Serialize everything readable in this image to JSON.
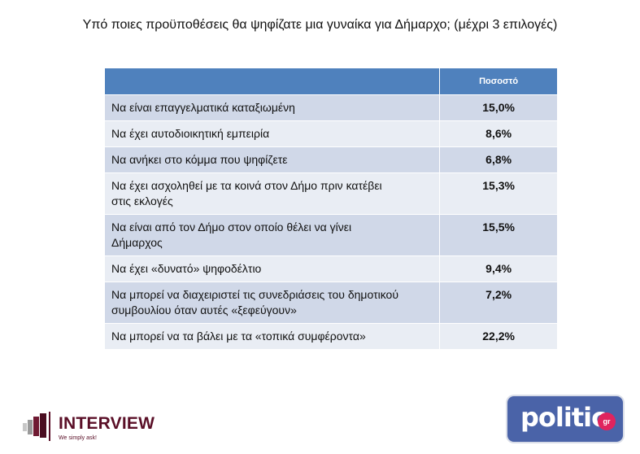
{
  "title": "Υπό ποιες προϋποθέσεις θα ψηφίζατε μια γυναίκα για Δήμαρχο; (μέχρι 3 επιλογές)",
  "table": {
    "header": {
      "label": "",
      "pct": "Ποσοστό"
    },
    "rows": [
      {
        "label": "Να είναι επαγγελματικά καταξιωμένη",
        "pct": "15,0%"
      },
      {
        "label": "Να έχει αυτοδιοικητική εμπειρία",
        "pct": "8,6%"
      },
      {
        "label": "Να ανήκει στο κόμμα που ψηφίζετε",
        "pct": "6,8%"
      },
      {
        "label": "Να έχει ασχοληθεί με τα κοινά στον Δήμο πριν κατέβει στις εκλογές",
        "pct": "15,3%"
      },
      {
        "label": "Να είναι από τον Δήμο στον οποίο θέλει να γίνει Δήμαρχος",
        "pct": "15,5%"
      },
      {
        "label": "Να έχει «δυνατό» ψηφοδέλτιο",
        "pct": "9,4%"
      },
      {
        "label": "Να μπορεί να διαχειριστεί τις συνεδριάσεις του δημοτικού συμβουλίου όταν αυτές «ξεφεύγουν»",
        "pct": "7,2%"
      },
      {
        "label": "Να μπορεί να τα βάλει με τα «τοπικά συμφέροντα»",
        "pct": "22,2%"
      }
    ]
  },
  "logos": {
    "interview": {
      "name": "INTERVIEW",
      "tagline": "We simply ask!"
    },
    "politic": {
      "name": "politic",
      "badge": "gr"
    }
  },
  "colors": {
    "header_bg": "#4f81bd",
    "row_odd": "#d0d8e8",
    "row_even": "#e9edf4",
    "interview_brand": "#5a0f27",
    "politic_bg": "#4a63a8",
    "politic_badge": "#e0245e"
  }
}
